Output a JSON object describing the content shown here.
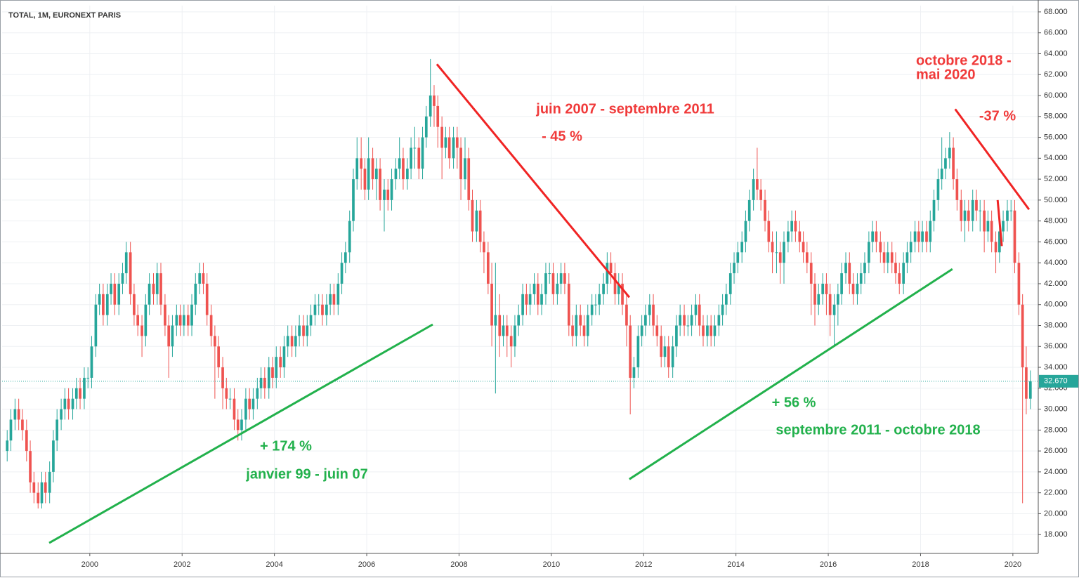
{
  "chart_data": {
    "type": "candlestick",
    "title": "TOTAL, 1M, EURONEXT PARIS",
    "x": [
      1998.21,
      1998.29,
      1998.38,
      1998.46,
      1998.54,
      1998.63,
      1998.71,
      1998.79,
      1998.88,
      1998.96,
      1999.04,
      1999.13,
      1999.21,
      1999.29,
      1999.38,
      1999.46,
      1999.54,
      1999.63,
      1999.71,
      1999.79,
      1999.88,
      1999.96,
      2000.04,
      2000.13,
      2000.21,
      2000.29,
      2000.38,
      2000.46,
      2000.54,
      2000.63,
      2000.71,
      2000.79,
      2000.88,
      2000.96,
      2001.04,
      2001.13,
      2001.21,
      2001.29,
      2001.38,
      2001.46,
      2001.54,
      2001.63,
      2001.71,
      2001.79,
      2001.88,
      2001.96,
      2002.04,
      2002.13,
      2002.21,
      2002.29,
      2002.38,
      2002.46,
      2002.54,
      2002.63,
      2002.71,
      2002.79,
      2002.88,
      2002.96,
      2003.04,
      2003.13,
      2003.21,
      2003.29,
      2003.38,
      2003.46,
      2003.54,
      2003.63,
      2003.71,
      2003.79,
      2003.88,
      2003.96,
      2004.04,
      2004.13,
      2004.21,
      2004.29,
      2004.38,
      2004.46,
      2004.54,
      2004.63,
      2004.71,
      2004.79,
      2004.88,
      2004.96,
      2005.04,
      2005.13,
      2005.21,
      2005.29,
      2005.38,
      2005.46,
      2005.54,
      2005.63,
      2005.71,
      2005.79,
      2005.88,
      2005.96,
      2006.04,
      2006.13,
      2006.21,
      2006.29,
      2006.38,
      2006.46,
      2006.54,
      2006.63,
      2006.71,
      2006.79,
      2006.88,
      2006.96,
      2007.04,
      2007.13,
      2007.21,
      2007.29,
      2007.38,
      2007.46,
      2007.54,
      2007.63,
      2007.71,
      2007.79,
      2007.88,
      2007.96,
      2008.04,
      2008.13,
      2008.21,
      2008.29,
      2008.38,
      2008.46,
      2008.54,
      2008.63,
      2008.71,
      2008.79,
      2008.88,
      2008.96,
      2009.04,
      2009.13,
      2009.21,
      2009.29,
      2009.38,
      2009.46,
      2009.54,
      2009.63,
      2009.71,
      2009.79,
      2009.88,
      2009.96,
      2010.04,
      2010.13,
      2010.21,
      2010.29,
      2010.38,
      2010.46,
      2010.54,
      2010.63,
      2010.71,
      2010.79,
      2010.88,
      2010.96,
      2011.04,
      2011.13,
      2011.21,
      2011.29,
      2011.38,
      2011.46,
      2011.54,
      2011.63,
      2011.71,
      2011.79,
      2011.88,
      2011.96,
      2012.04,
      2012.13,
      2012.21,
      2012.29,
      2012.38,
      2012.46,
      2012.54,
      2012.63,
      2012.71,
      2012.79,
      2012.88,
      2012.96,
      2013.04,
      2013.13,
      2013.21,
      2013.29,
      2013.38,
      2013.46,
      2013.54,
      2013.63,
      2013.71,
      2013.79,
      2013.88,
      2013.96,
      2014.04,
      2014.13,
      2014.21,
      2014.29,
      2014.38,
      2014.46,
      2014.54,
      2014.63,
      2014.71,
      2014.79,
      2014.88,
      2014.96,
      2015.04,
      2015.13,
      2015.21,
      2015.29,
      2015.38,
      2015.46,
      2015.54,
      2015.63,
      2015.71,
      2015.79,
      2015.88,
      2015.96,
      2016.04,
      2016.13,
      2016.21,
      2016.29,
      2016.38,
      2016.46,
      2016.54,
      2016.63,
      2016.71,
      2016.79,
      2016.88,
      2016.96,
      2017.04,
      2017.13,
      2017.21,
      2017.29,
      2017.38,
      2017.46,
      2017.54,
      2017.63,
      2017.71,
      2017.79,
      2017.88,
      2017.96,
      2018.04,
      2018.13,
      2018.21,
      2018.29,
      2018.38,
      2018.46,
      2018.54,
      2018.63,
      2018.71,
      2018.79,
      2018.88,
      2018.96,
      2019.04,
      2019.13,
      2019.21,
      2019.29,
      2019.38,
      2019.46,
      2019.54,
      2019.63,
      2019.71,
      2019.79,
      2019.88,
      2019.96,
      2020.04,
      2020.13,
      2020.21,
      2020.29,
      2020.38
    ],
    "open": [
      26,
      27,
      29,
      30,
      29,
      28,
      26,
      23,
      22,
      21,
      23,
      22,
      24,
      27,
      29,
      30,
      31,
      30,
      31,
      32,
      31,
      33,
      33,
      36,
      40,
      41,
      39,
      41,
      42,
      40,
      42,
      43,
      45,
      41,
      39,
      38,
      37,
      40,
      42,
      41,
      43,
      40,
      38,
      36,
      38,
      39,
      38,
      39,
      38,
      40,
      42,
      43,
      42,
      39,
      37,
      36,
      34,
      32,
      31,
      31,
      29,
      28,
      29,
      31,
      30,
      31,
      32,
      33,
      32,
      34,
      33,
      35,
      34,
      36,
      37,
      36,
      37,
      38,
      37,
      38,
      39,
      40,
      40,
      39,
      40,
      41,
      40,
      42,
      44,
      45,
      48,
      52,
      54,
      53,
      51,
      54,
      52,
      53,
      50,
      51,
      50,
      52,
      53,
      54,
      52,
      53,
      55,
      55,
      53,
      56,
      58,
      60,
      59,
      57,
      55,
      56,
      54,
      56,
      55,
      52,
      54,
      50,
      47,
      49,
      46,
      45,
      42,
      38,
      39,
      37,
      38,
      37,
      36,
      38,
      39,
      41,
      40,
      41,
      42,
      40,
      41,
      43,
      43,
      41,
      42,
      43,
      42,
      38,
      37,
      39,
      38,
      37,
      39,
      40,
      40,
      41,
      42,
      44,
      43,
      41,
      42,
      40,
      38,
      33,
      34,
      37,
      38,
      39,
      40,
      38,
      37,
      35,
      36,
      34,
      36,
      38,
      39,
      38,
      38,
      39,
      40,
      38,
      37,
      38,
      37,
      38,
      39,
      40,
      41,
      43,
      44,
      45,
      46,
      48,
      50,
      52,
      51,
      50,
      48,
      46,
      45,
      45,
      44,
      46,
      47,
      48,
      47,
      46,
      45,
      44,
      42,
      40,
      41,
      42,
      41,
      39,
      40,
      41,
      43,
      44,
      42,
      41,
      42,
      43,
      44,
      46,
      47,
      46,
      45,
      44,
      45,
      44,
      43,
      42,
      44,
      45,
      46,
      47,
      46,
      47,
      46,
      48,
      50,
      52,
      53,
      54,
      55,
      52,
      50,
      48,
      49,
      48,
      50,
      49,
      49,
      47,
      48,
      46,
      45,
      47,
      48,
      49,
      49,
      44,
      40,
      34,
      31
    ],
    "high": [
      28,
      30,
      31,
      31,
      30,
      29,
      27,
      24,
      23,
      24,
      24,
      25,
      28,
      30,
      31,
      32,
      32,
      32,
      33,
      33,
      34,
      34,
      37,
      41,
      42,
      42,
      42,
      43,
      43,
      43,
      44,
      46,
      46,
      42,
      40,
      39,
      41,
      43,
      43,
      44,
      44,
      41,
      39,
      39,
      40,
      40,
      40,
      40,
      41,
      43,
      44,
      44,
      43,
      40,
      38,
      37,
      35,
      33,
      32,
      32,
      30,
      30,
      32,
      32,
      32,
      33,
      34,
      34,
      35,
      35,
      36,
      36,
      37,
      38,
      38,
      38,
      39,
      39,
      39,
      40,
      41,
      41,
      41,
      41,
      42,
      42,
      43,
      45,
      46,
      49,
      53,
      56,
      56,
      54,
      56,
      55,
      54,
      54,
      52,
      52,
      53,
      54,
      56,
      55,
      54,
      56,
      57,
      56,
      57,
      59,
      63.5,
      61,
      60,
      58,
      57,
      57,
      57,
      57,
      56,
      56,
      55,
      51,
      50,
      50,
      47,
      46,
      44,
      44,
      41,
      39,
      39,
      38,
      39,
      40,
      42,
      42,
      42,
      43,
      43,
      42,
      44,
      44,
      44,
      43,
      44,
      44,
      43,
      39,
      40,
      40,
      39,
      40,
      41,
      41,
      42,
      43,
      45,
      45,
      44,
      43,
      43,
      41,
      39,
      35,
      38,
      39,
      40,
      41,
      41,
      39,
      38,
      37,
      37,
      37,
      39,
      40,
      40,
      39,
      40,
      41,
      41,
      39,
      39,
      39,
      39,
      40,
      41,
      42,
      44,
      45,
      46,
      47,
      49,
      51,
      53,
      55,
      52,
      51,
      49,
      47,
      47,
      46,
      47,
      48,
      49,
      49,
      48,
      47,
      46,
      45,
      43,
      42,
      43,
      43,
      42,
      41,
      42,
      44,
      45,
      45,
      43,
      43,
      44,
      45,
      47,
      48,
      48,
      47,
      46,
      46,
      46,
      45,
      44,
      45,
      46,
      47,
      48,
      48,
      48,
      48,
      49,
      51,
      53,
      56,
      55,
      56.5,
      56,
      53,
      51,
      50,
      50,
      51,
      51,
      50,
      50,
      49,
      49,
      47,
      48,
      49,
      50,
      50,
      50,
      45,
      41,
      36,
      33.7
    ],
    "low": [
      25,
      26,
      28,
      28,
      27,
      25,
      22,
      21,
      20.5,
      20.5,
      21,
      21,
      23,
      26,
      28,
      29,
      29,
      29,
      30,
      30,
      30,
      32,
      32,
      35,
      39,
      38,
      38,
      40,
      39,
      39,
      41,
      42,
      40,
      38,
      37,
      35,
      36,
      39,
      40,
      40,
      39,
      37,
      33,
      35,
      37,
      37,
      37,
      37,
      37,
      39,
      41,
      41,
      38,
      36,
      31,
      33,
      30,
      30,
      30,
      28,
      27,
      27,
      28,
      29,
      29,
      30,
      31,
      31,
      31,
      32,
      32,
      33,
      33,
      35,
      35,
      35,
      36,
      36,
      36,
      37,
      38,
      39,
      38,
      38,
      39,
      39,
      39,
      41,
      43,
      44,
      47,
      51,
      51,
      50,
      50,
      51,
      50,
      49,
      47,
      49,
      49,
      51,
      52,
      51,
      51,
      52,
      53,
      52,
      52,
      55,
      57,
      57,
      55,
      52,
      54,
      53,
      53,
      53,
      50,
      51,
      49,
      46,
      46,
      45,
      43,
      41,
      36,
      31.5,
      35,
      36,
      35,
      34,
      35,
      37,
      38,
      39,
      39,
      40,
      39,
      39,
      40,
      42,
      40,
      40,
      41,
      41,
      37,
      36,
      36,
      37,
      36,
      36,
      38,
      39,
      39,
      40,
      41,
      42,
      40,
      40,
      39,
      36,
      29.5,
      32,
      33,
      36,
      37,
      38,
      37,
      36,
      34,
      34,
      33,
      33,
      35,
      37,
      37,
      37,
      37,
      38,
      37,
      36,
      36,
      36,
      36,
      37,
      38,
      39,
      40,
      42,
      43,
      44,
      45,
      47,
      49,
      50,
      49,
      47,
      45,
      43,
      43,
      42,
      42,
      45,
      46,
      46,
      45,
      44,
      43,
      39,
      38,
      39,
      40,
      39,
      37,
      36,
      38,
      40,
      42,
      41,
      40,
      40,
      41,
      42,
      43,
      45,
      45,
      44,
      43,
      43,
      43,
      42,
      41,
      41,
      43,
      44,
      45,
      45,
      45,
      45,
      45,
      47,
      49,
      51,
      52,
      53,
      51,
      49,
      47,
      46,
      47,
      47,
      48,
      47,
      45,
      46,
      45,
      43,
      44,
      46,
      47,
      48,
      43,
      39,
      21,
      29.5,
      30
    ],
    "close": [
      27,
      29,
      30,
      29,
      28,
      26,
      23,
      22,
      21,
      23,
      22,
      24,
      27,
      29,
      30,
      31,
      30,
      31,
      32,
      31,
      33,
      33,
      36,
      40,
      41,
      39,
      41,
      42,
      40,
      42,
      43,
      45,
      41,
      39,
      38,
      37,
      40,
      42,
      41,
      43,
      40,
      38,
      36,
      38,
      39,
      38,
      39,
      38,
      40,
      42,
      43,
      42,
      39,
      37,
      36,
      34,
      32,
      31,
      31,
      29,
      28,
      29,
      31,
      30,
      31,
      32,
      33,
      32,
      34,
      33,
      35,
      34,
      36,
      37,
      36,
      37,
      38,
      37,
      38,
      39,
      40,
      40,
      39,
      40,
      41,
      40,
      42,
      44,
      45,
      48,
      52,
      54,
      53,
      51,
      54,
      52,
      53,
      50,
      51,
      50,
      52,
      53,
      54,
      52,
      53,
      55,
      55,
      53,
      56,
      58,
      60,
      59,
      57,
      55,
      56,
      54,
      56,
      55,
      52,
      54,
      50,
      47,
      49,
      46,
      45,
      42,
      38,
      39,
      37,
      38,
      37,
      36,
      38,
      39,
      41,
      40,
      41,
      42,
      40,
      41,
      43,
      43,
      41,
      42,
      43,
      42,
      38,
      37,
      39,
      38,
      37,
      39,
      40,
      40,
      41,
      42,
      44,
      43,
      41,
      42,
      40,
      38,
      33,
      34,
      37,
      38,
      39,
      40,
      38,
      37,
      35,
      36,
      34,
      36,
      38,
      39,
      38,
      38,
      39,
      40,
      38,
      37,
      38,
      37,
      38,
      39,
      40,
      41,
      43,
      44,
      45,
      46,
      48,
      50,
      52,
      51,
      50,
      48,
      46,
      45,
      45,
      44,
      46,
      47,
      48,
      47,
      46,
      45,
      44,
      42,
      40,
      41,
      42,
      41,
      39,
      40,
      41,
      43,
      44,
      42,
      41,
      42,
      43,
      44,
      46,
      47,
      46,
      45,
      44,
      45,
      44,
      43,
      42,
      44,
      45,
      46,
      47,
      46,
      47,
      46,
      48,
      50,
      52,
      53,
      54,
      55,
      52,
      50,
      48,
      49,
      48,
      50,
      49,
      49,
      47,
      48,
      46,
      45,
      47,
      48,
      49,
      49,
      44,
      40,
      34,
      31,
      32.67
    ],
    "up_color": "#26a69a",
    "down_color": "#ef5350",
    "xlim": [
      1998.1,
      2020.55
    ],
    "xticks": [
      2000,
      2002,
      2004,
      2006,
      2008,
      2010,
      2012,
      2014,
      2016,
      2018,
      2020
    ],
    "ylim": [
      16.2,
      68.6
    ],
    "yticks": [
      {
        "value": 18,
        "label": "18.000"
      },
      {
        "value": 20,
        "label": "20.000"
      },
      {
        "value": 22,
        "label": "22.000"
      },
      {
        "value": 24,
        "label": "24.000"
      },
      {
        "value": 26,
        "label": "26.000"
      },
      {
        "value": 28,
        "label": "28.000"
      },
      {
        "value": 30,
        "label": "30.000"
      },
      {
        "value": 32,
        "label": "32.000"
      },
      {
        "value": 34,
        "label": "34.000"
      },
      {
        "value": 36,
        "label": "36.000"
      },
      {
        "value": 38,
        "label": "38.000"
      },
      {
        "value": 40,
        "label": "40.000"
      },
      {
        "value": 42,
        "label": "42.000"
      },
      {
        "value": 44,
        "label": "44.000"
      },
      {
        "value": 46,
        "label": "46.000"
      },
      {
        "value": 48,
        "label": "48.000"
      },
      {
        "value": 50,
        "label": "50.000"
      },
      {
        "value": 52,
        "label": "52.000"
      },
      {
        "value": 54,
        "label": "54.000"
      },
      {
        "value": 56,
        "label": "56.000"
      },
      {
        "value": 58,
        "label": "58.000"
      },
      {
        "value": 60,
        "label": "60.000"
      },
      {
        "value": 62,
        "label": "62.000"
      },
      {
        "value": 64,
        "label": "64.000"
      },
      {
        "value": 66,
        "label": "66.000"
      },
      {
        "value": 68,
        "label": "68.000"
      }
    ],
    "grid": true,
    "last_price": {
      "value": 32.67,
      "label": "32.670"
    },
    "last_price_color": "#26a69a",
    "trendlines": [
      {
        "color": "#22b14c",
        "x": [
          1999.12,
          2007.43
        ],
        "y": [
          17.2,
          38.1
        ]
      },
      {
        "color": "#f02424",
        "x": [
          2007.52,
          2011.69
        ],
        "y": [
          63.0,
          40.7
        ]
      },
      {
        "color": "#22b14c",
        "x": [
          2011.69,
          2018.69
        ],
        "y": [
          23.3,
          43.4
        ]
      },
      {
        "color": "#f02424",
        "x": [
          2018.75,
          2020.35
        ],
        "y": [
          58.7,
          49.1
        ]
      },
      {
        "color": "#f02424",
        "x": [
          2019.67,
          2019.76
        ],
        "y": [
          50.0,
          45.6
        ]
      }
    ],
    "annotations": [
      {
        "text": "juin 2007 - septembre 2011",
        "color": "#f03a3a"
      },
      {
        "text": "- 45 %",
        "color": "#f03a3a"
      },
      {
        "text": "octobre 2018 -",
        "color": "#f03a3a"
      },
      {
        "text": "mai 2020",
        "color": "#f03a3a"
      },
      {
        "text": "-37 %",
        "color": "#f03a3a"
      },
      {
        "text": "+ 174 %",
        "color": "#22b14c"
      },
      {
        "text": "janvier 99 - juin 07",
        "color": "#22b14c"
      },
      {
        "text": "+ 56 %",
        "color": "#22b14c"
      },
      {
        "text": "septembre 2011 - octobre 2018",
        "color": "#22b14c"
      }
    ]
  }
}
